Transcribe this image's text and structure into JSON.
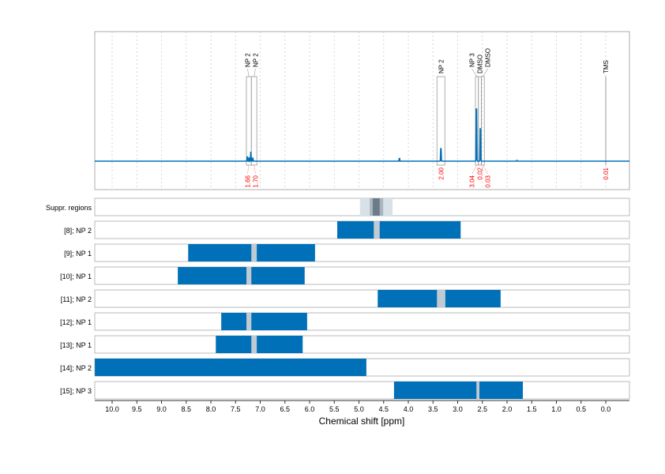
{
  "chart_data": {
    "type": "nmr-spectrum-with-region-bars",
    "xlabel": "Chemical shift [ppm]",
    "xlim": [
      10.35,
      -0.48
    ],
    "x_ticks": [
      "10.0",
      "9.5",
      "9.0",
      "8.5",
      "8.0",
      "7.5",
      "7.0",
      "6.5",
      "6.0",
      "5.5",
      "5.0",
      "4.5",
      "4.0",
      "3.5",
      "3.0",
      "2.5",
      "2.0",
      "1.5",
      "1.0",
      "0.5",
      "0.0"
    ],
    "grid": "vertical dotted",
    "colors": {
      "spectrum": "#0070b8",
      "bar": "#0070b8",
      "gap": "#c0cad3",
      "integral": "#ff0000",
      "suppr_light": "#d9e1e8",
      "suppr_mid": "#a8b4bf",
      "suppr_dark": "#6b7b88"
    },
    "peaks": [
      {
        "label": "NP 2",
        "range": [
          7.28,
          7.18
        ],
        "integral": "1.66"
      },
      {
        "label": "NP 2",
        "range": [
          7.18,
          7.07
        ],
        "integral": "1.70"
      },
      {
        "label": "NP 2",
        "range": [
          3.42,
          3.26
        ],
        "integral": "2.00"
      },
      {
        "label": "NP 3",
        "range": [
          2.64,
          2.58
        ],
        "integral": "3.04"
      },
      {
        "label": "DMSO",
        "range": [
          2.58,
          2.52
        ],
        "integral": "0.02"
      },
      {
        "label": "DMSO",
        "range": [
          2.52,
          2.46
        ],
        "integral": "0.03"
      },
      {
        "label": "TMS",
        "range": [
          0.0,
          0.0
        ],
        "integral": "0.01"
      }
    ],
    "spectrum_peaks": [
      {
        "ppm": 7.26,
        "height": 0.08
      },
      {
        "ppm": 7.22,
        "height": 0.06
      },
      {
        "ppm": 7.19,
        "height": 0.13
      },
      {
        "ppm": 7.15,
        "height": 0.05
      },
      {
        "ppm": 4.18,
        "height": 0.05
      },
      {
        "ppm": 3.34,
        "height": 0.24
      },
      {
        "ppm": 2.62,
        "height": 1.0
      },
      {
        "ppm": 2.54,
        "height": 0.62
      },
      {
        "ppm": 1.8,
        "height": 0.01
      }
    ],
    "suppressed_regions": {
      "label": "Suppr. regions",
      "outer": [
        4.98,
        4.32
      ],
      "mid": [
        4.78,
        4.51
      ],
      "inner": [
        4.72,
        4.58
      ]
    },
    "rows": [
      {
        "label": "[8]; NP 2",
        "range": [
          5.44,
          2.94
        ],
        "gaps": [
          [
            4.7,
            4.58
          ]
        ]
      },
      {
        "label": "[9]; NP 1",
        "range": [
          8.46,
          5.89
        ],
        "gaps": [
          [
            7.18,
            7.07
          ]
        ]
      },
      {
        "label": "[10]; NP 1",
        "range": [
          8.67,
          6.1
        ],
        "gaps": [
          [
            7.28,
            7.18
          ]
        ]
      },
      {
        "label": "[11]; NP 2",
        "range": [
          4.62,
          2.13
        ],
        "gaps": [
          [
            3.42,
            3.25
          ]
        ]
      },
      {
        "label": "[12]; NP 1",
        "range": [
          7.79,
          6.05
        ],
        "gaps": [
          [
            7.28,
            7.18
          ]
        ]
      },
      {
        "label": "[13]; NP 1",
        "range": [
          7.9,
          6.14
        ],
        "gaps": [
          [
            7.18,
            7.07
          ]
        ]
      },
      {
        "label": "[14]; NP 2",
        "range": [
          10.35,
          4.85
        ],
        "gaps": []
      },
      {
        "label": "[15]; NP 3",
        "range": [
          4.29,
          1.68
        ],
        "gaps": [
          [
            2.62,
            2.56
          ]
        ]
      }
    ]
  }
}
